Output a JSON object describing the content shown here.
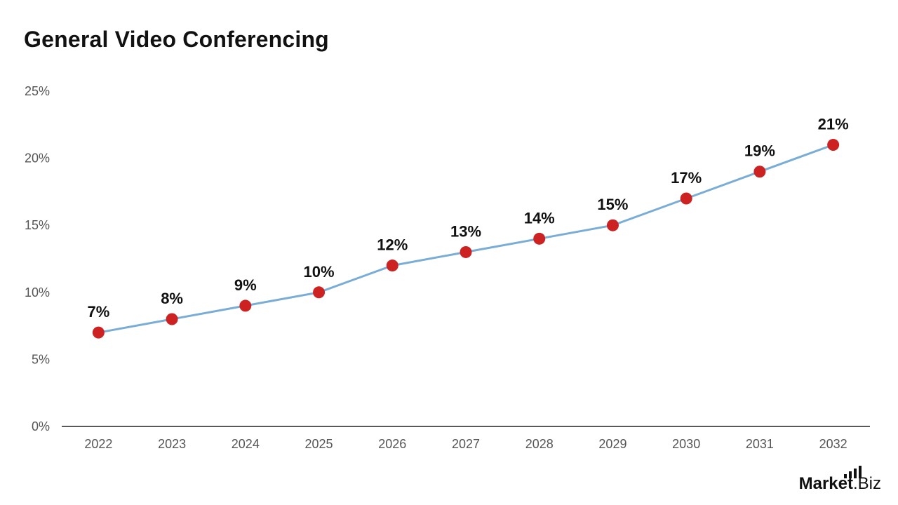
{
  "chart_data": {
    "type": "line",
    "title": "General Video Conferencing",
    "categories": [
      "2022",
      "2023",
      "2024",
      "2025",
      "2026",
      "2027",
      "2028",
      "2029",
      "2030",
      "2031",
      "2032"
    ],
    "series": [
      {
        "values": [
          7,
          8,
          9,
          10,
          12,
          13,
          14,
          15,
          17,
          19,
          21
        ]
      }
    ],
    "data_labels": [
      "7%",
      "8%",
      "9%",
      "10%",
      "12%",
      "13%",
      "14%",
      "15%",
      "17%",
      "19%",
      "21%"
    ],
    "y_ticks": [
      0,
      5,
      10,
      15,
      20,
      25
    ],
    "y_tick_labels": [
      "0%",
      "5%",
      "10%",
      "15%",
      "20%",
      "25%"
    ],
    "ylim": [
      0,
      25
    ],
    "grid": false,
    "line_color": "#7aadd6",
    "marker_color": "#cc2222"
  },
  "brand": {
    "name": "Market",
    "suffix": ".Biz"
  }
}
